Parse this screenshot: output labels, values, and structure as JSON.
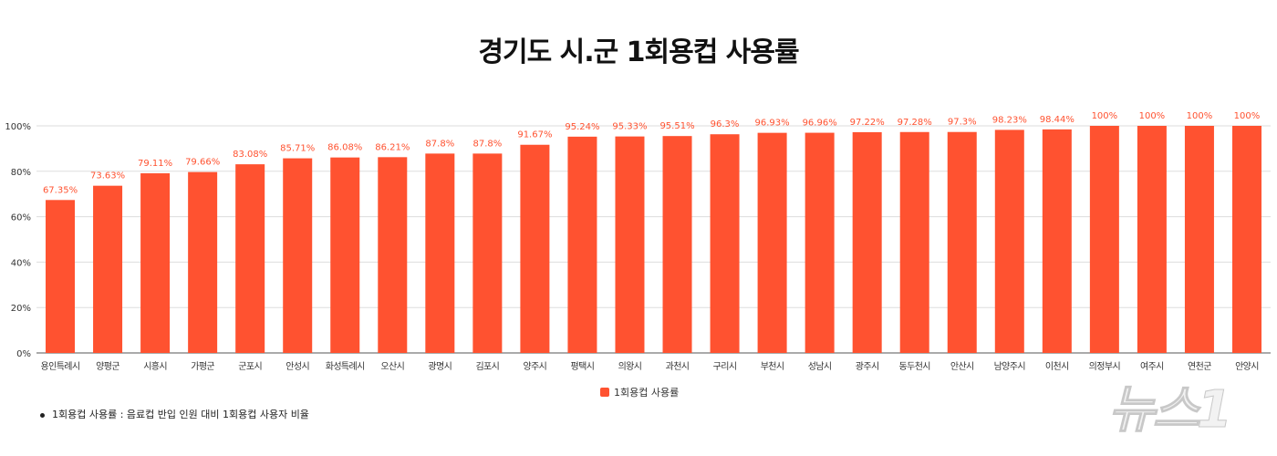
{
  "chart_data": {
    "type": "bar",
    "title": "경기도 시.군 1회용컵 사용률",
    "categories": [
      "용인특례시",
      "양평군",
      "시흥시",
      "가평군",
      "군포시",
      "안성시",
      "화성특례시",
      "오산시",
      "광명시",
      "김포시",
      "양주시",
      "평택시",
      "의왕시",
      "과천시",
      "구리시",
      "부천시",
      "성남시",
      "광주시",
      "동두천시",
      "안산시",
      "남양주시",
      "이천시",
      "의정부시",
      "여주시",
      "연천군",
      "안양시"
    ],
    "series": [
      {
        "name": "1회용컵 사용률",
        "values": [
          67.35,
          73.63,
          79.11,
          79.66,
          83.08,
          85.71,
          86.08,
          86.21,
          87.8,
          87.8,
          91.67,
          95.24,
          95.33,
          95.51,
          96.3,
          96.93,
          96.96,
          97.22,
          97.28,
          97.3,
          98.23,
          98.44,
          100,
          100,
          100,
          100
        ]
      }
    ],
    "data_labels": [
      "67.35%",
      "73.63%",
      "79.11%",
      "79.66%",
      "83.08%",
      "85.71%",
      "86.08%",
      "86.21%",
      "87.8%",
      "87.8%",
      "91.67%",
      "95.24%",
      "95.33%",
      "95.51%",
      "96.3%",
      "96.93%",
      "96.96%",
      "97.22%",
      "97.28%",
      "97.3%",
      "98.23%",
      "98.44%",
      "100%",
      "100%",
      "100%",
      "100%"
    ],
    "yticks": [
      "0%",
      "20%",
      "40%",
      "60%",
      "80%",
      "100%"
    ],
    "ylim": [
      0,
      100
    ],
    "grid": true,
    "legend": "bottom",
    "bar_color": "#ff5230",
    "label_color": "#ff5230"
  },
  "note": "1회용컵 사용률 : 음료컵 반입 인원 대비 1회용컵 사용자 비율",
  "watermark": "뉴스1"
}
